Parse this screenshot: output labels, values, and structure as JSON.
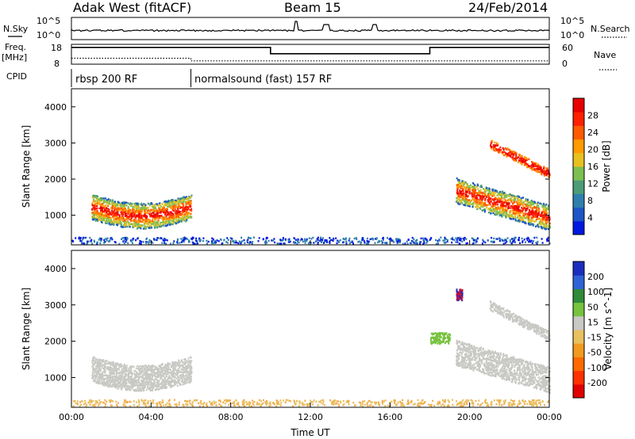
{
  "header": {
    "station": "Adak West (fitACF)",
    "beam": "Beam 15",
    "date": "24/Feb/2014"
  },
  "strip_labels": {
    "nsky": "N.Sky",
    "nsearch": "N.Search",
    "freq": "Freq.",
    "freq_unit": "[MHz]",
    "nave": "Nave",
    "cpid": "CPID",
    "ten_pow5_left": "10^5",
    "ten_pow0_left": "10^0",
    "ten_pow5_right": "10^5",
    "ten_pow0_right": "10^0",
    "freq_hi": "18",
    "freq_lo": "8",
    "nave_hi": "60",
    "nave_lo": "0"
  },
  "cpid_segments": [
    {
      "label": "rbsp 200 RF",
      "start_hr": 0
    },
    {
      "label": "normalsound (fast) 157 RF",
      "start_hr": 6
    }
  ],
  "chart_data": [
    {
      "type": "line",
      "name": "frequency",
      "ylabel": "Freq. [MHz]",
      "ylim": [
        8,
        18
      ],
      "x": [
        0,
        6,
        6,
        10,
        10,
        18,
        18,
        24
      ],
      "y": [
        16.5,
        16.5,
        16.5,
        16.5,
        13.3,
        13.3,
        16.5,
        16.5
      ]
    },
    {
      "type": "line",
      "name": "nave",
      "ylabel": "Nave",
      "ylim": [
        0,
        60
      ],
      "x": [
        0,
        6,
        6,
        24
      ],
      "y": [
        18,
        18,
        10,
        10
      ]
    },
    {
      "type": "heatmap",
      "title": "Power",
      "ylabel": "Slant Range [km]",
      "cbar_label": "Power [dB]",
      "cbar_ticks": [
        4,
        8,
        12,
        16,
        20,
        24,
        28
      ],
      "cbar_colors": [
        "#0018e0",
        "#1d55c7",
        "#2f7fae",
        "#4c9c78",
        "#7cbf52",
        "#e8c020",
        "#ff9a00",
        "#ff5a00",
        "#ff2000",
        "#e80000"
      ],
      "ylim": [
        180,
        4500
      ],
      "yticks": [
        1000,
        2000,
        3000,
        4000
      ]
    },
    {
      "type": "heatmap",
      "title": "Velocity",
      "ylabel": "Slant Range [km]",
      "xlabel": "Time UT",
      "cbar_label": "Velocity [m s^-1]",
      "cbar_ticks": [
        "200",
        "100",
        "50",
        "15",
        "-15",
        "-50",
        "-100",
        "-200"
      ],
      "cbar_colors": [
        "#1a2fbf",
        "#2e64d6",
        "#2f8a3a",
        "#77c23f",
        "#c8c8c4",
        "#e9c060",
        "#f09a20",
        "#ff6a00",
        "#ff3000",
        "#e00000"
      ],
      "ylim": [
        180,
        4500
      ],
      "yticks": [
        1000,
        2000,
        3000,
        4000
      ]
    }
  ],
  "time_axis": {
    "ticks": [
      "00:00",
      "04:00",
      "08:00",
      "12:00",
      "16:00",
      "20:00",
      "00:00"
    ],
    "xlabel": "Time UT"
  }
}
